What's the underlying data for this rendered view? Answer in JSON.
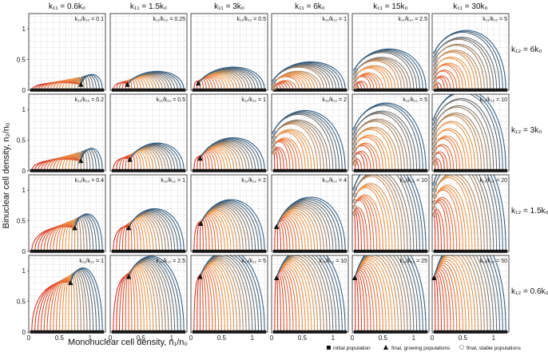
{
  "figure": {
    "xlabel": "Mononuclear cell density, n₁/n₀",
    "ylabel": "Binuclear cell density, n₂/n₀",
    "legend": {
      "initial": "initial population",
      "growing": "final, growing populations",
      "stable": "final, stable populations"
    }
  },
  "colors": {
    "initial": "#111111",
    "early": "#d7301f",
    "mid": "#f39c4a",
    "late": "#2f5b82",
    "stable_marker": "#e6a877"
  },
  "chart_data": {
    "type": "line",
    "layout": "small-multiples 4x6",
    "columns": [
      {
        "label": "k₁₁ = 0.6k₀",
        "k11": 0.6
      },
      {
        "label": "k₁₁ = 1.5k₀",
        "k11": 1.5
      },
      {
        "label": "k₁₁ = 3k₀",
        "k11": 3
      },
      {
        "label": "k₁₁ = 6k₀",
        "k11": 6
      },
      {
        "label": "k₁₁ = 15k₀",
        "k11": 15
      },
      {
        "label": "k₁₁ = 30k₀",
        "k11": 30
      }
    ],
    "rows": [
      {
        "label": "k₁₂ = 6k₀",
        "k12": 6
      },
      {
        "label": "k₁₂ = 3k₀",
        "k12": 3
      },
      {
        "label": "k₁₂ = 1.5k₀",
        "k12": 1.5
      },
      {
        "label": "k₁₂ = 0.6k₀",
        "k12": 0.6
      }
    ],
    "ratio_labels": [
      [
        "k₁₁/k₁₂ = 0.1",
        "k₁₁/k₁₂ = 0.25",
        "k₁₁/k₁₂ = 0.5",
        "k₁₁/k₁₂ = 1",
        "k₁₁/k₁₂ = 2.5",
        "k₁₁/k₁₂ = 5"
      ],
      [
        "k₁₁/k₁₂ = 0.2",
        "k₁₁/k₁₂ = 0.5",
        "k₁₁/k₁₂ = 1",
        "k₁₁/k₁₂ = 2",
        "k₁₁/k₁₂ = 5",
        "k₁₁/k₁₂ = 10"
      ],
      [
        "k₁₁/k₁₂ = 0.4",
        "k₁₁/k₁₂ = 1",
        "k₁₁/k₁₂ = 2",
        "k₁₁/k₁₂ = 4",
        "k₁₁/k₁₂ = 10",
        "k₁₁/k₁₂ = 20"
      ],
      [
        "k₁₁/k₁₂ = 1",
        "k₁₁/k₁₂ = 2.5",
        "k₁₁/k₁₂ = 5",
        "k₁₁/k₁₂ = 10",
        "k₁₁/k₁₂ = 25",
        "k₁₁/k₁₂ = 50"
      ]
    ],
    "xlim": [
      0,
      1.25
    ],
    "ylim": [
      0,
      1.25
    ],
    "xticks": [
      0,
      0.5,
      1
    ],
    "xtick_labels": [
      "0",
      "0.5",
      "1"
    ],
    "yticks": [
      0,
      0.5,
      1
    ],
    "ytick_labels": [
      "0",
      "0.5",
      "1"
    ],
    "initial_n1": [
      0.05,
      0.1,
      0.15,
      0.2,
      0.25,
      0.3,
      0.35,
      0.4,
      0.45,
      0.5,
      0.55,
      0.6,
      0.65,
      0.7,
      0.75,
      0.8,
      0.85,
      0.9,
      0.95,
      1.0,
      1.05,
      1.1,
      1.15,
      1.2
    ],
    "initial_n2": 0,
    "endpoints": [
      [
        {
          "kind": "growing",
          "n1": 0.85,
          "n2": 0.09
        },
        {
          "kind": "growing",
          "n1": 0.28,
          "n2": 0.09
        },
        {
          "kind": "growing",
          "n1": 0.12,
          "n2": 0.11
        },
        {
          "kind": "stable",
          "n1": 0.02,
          "n2": [
            0.03,
            0.09,
            0.15
          ]
        },
        {
          "kind": "stable",
          "n1": 0.03,
          "n2": [
            0.05,
            0.12,
            0.19,
            0.26,
            0.33
          ]
        },
        {
          "kind": "stable",
          "n1": 0.03,
          "n2": [
            0.05,
            0.12,
            0.19,
            0.26,
            0.33,
            0.4,
            0.47,
            0.54,
            0.61
          ]
        }
      ],
      [
        {
          "kind": "growing",
          "n1": 0.85,
          "n2": 0.16
        },
        {
          "kind": "growing",
          "n1": 0.32,
          "n2": 0.18
        },
        {
          "kind": "growing",
          "n1": 0.15,
          "n2": 0.2
        },
        {
          "kind": "stable",
          "n1": 0.02,
          "n2": [
            0.3,
            0.38,
            0.46,
            0.54,
            0.62
          ]
        },
        {
          "kind": "stable",
          "n1": 0.02,
          "n2": [
            0.12,
            0.2,
            0.28,
            0.36,
            0.44,
            0.52,
            0.6,
            0.68
          ]
        },
        {
          "kind": "stable",
          "n1": 0.02,
          "n2": [
            0.12,
            0.2,
            0.28,
            0.36,
            0.44,
            0.52,
            0.6,
            0.68,
            0.76,
            0.84
          ]
        }
      ],
      [
        {
          "kind": "growing",
          "n1": 0.75,
          "n2": 0.38
        },
        {
          "kind": "growing",
          "n1": 0.3,
          "n2": 0.38
        },
        {
          "kind": "growing",
          "n1": 0.16,
          "n2": 0.45
        },
        {
          "kind": "growing",
          "n1": 0.08,
          "n2": 0.4
        },
        {
          "kind": "stable",
          "n1": 0.02,
          "n2": [
            0.62,
            0.72,
            0.82,
            0.92,
            1.02
          ]
        },
        {
          "kind": "stable",
          "n1": 0.02,
          "n2": [
            0.6,
            0.7,
            0.8,
            0.9,
            1.0,
            1.1
          ]
        }
      ],
      [
        {
          "kind": "growing",
          "n1": 0.68,
          "n2": 0.8
        },
        {
          "kind": "growing",
          "n1": 0.3,
          "n2": 0.9
        },
        {
          "kind": "growing",
          "n1": 0.15,
          "n2": 0.9
        },
        {
          "kind": "growing",
          "n1": 0.08,
          "n2": 0.88
        },
        {
          "kind": "growing",
          "n1": 0.04,
          "n2": 0.88
        },
        {
          "kind": "growing",
          "n1": 0.03,
          "n2": 0.88
        }
      ]
    ]
  }
}
